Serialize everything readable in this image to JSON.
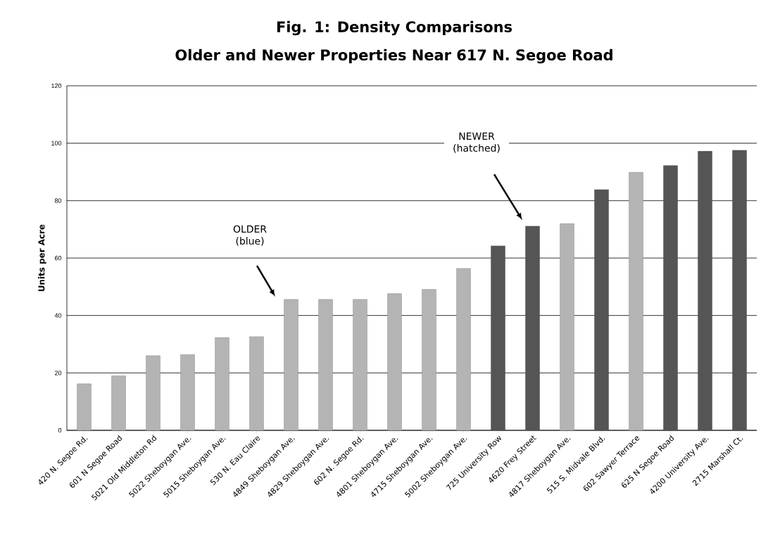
{
  "chart_data": {
    "type": "bar",
    "title": "Fig. 1: Density Comparisons",
    "subtitle": "Older and Newer Properties Near 617 N. Segoe Road",
    "ylabel": "Units per Acre",
    "categories": [
      "420 N. Segoe Rd.",
      "601 N Segoe Road",
      "5021 Old Middleton Rd",
      "5022 Sheboygan Ave.",
      "5015 Sheboygan Ave.",
      "530 N. Eau Claire",
      "4849 Sheboygan Ave.",
      "4829 Sheboygan Ave.",
      "602 N. Segoe Rd.",
      "4801 Sheboygan Ave.",
      "4715 Sheboygan Ave.",
      "5002 Sheboygan Ave.",
      "725 University Row",
      "4620 Frey Street",
      "4817 Sheboygan Ave.",
      "515 S. Midvale Blvd.",
      "602 Sawyer Terrace",
      "625 N Segoe Road",
      "4200 University Ave.",
      "2715 Marshall Ct."
    ],
    "values": [
      16.2,
      19,
      26,
      26.4,
      32.3,
      32.6,
      45.6,
      45.6,
      45.6,
      47.6,
      49.1,
      56.4,
      64.2,
      71.1,
      72,
      83.8,
      89.9,
      92.2,
      97.2,
      97.5
    ],
    "colors": [
      "#b4b4b4",
      "#b4b4b4",
      "#b4b4b4",
      "#b4b4b4",
      "#b4b4b4",
      "#b4b4b4",
      "#b4b4b4",
      "#b4b4b4",
      "#b4b4b4",
      "#b4b4b4",
      "#b4b4b4",
      "#b4b4b4",
      "#555555",
      "#555555",
      "#b4b4b4",
      "#555555",
      "#b4b4b4",
      "#555555",
      "#555555",
      "#555555"
    ],
    "ylim": [
      0,
      120
    ],
    "yticks": [
      0,
      20,
      40,
      60,
      80,
      100,
      120
    ],
    "grid": "y",
    "annotations": [
      "OLDER (blue)",
      "NEWER (hatched)"
    ]
  }
}
